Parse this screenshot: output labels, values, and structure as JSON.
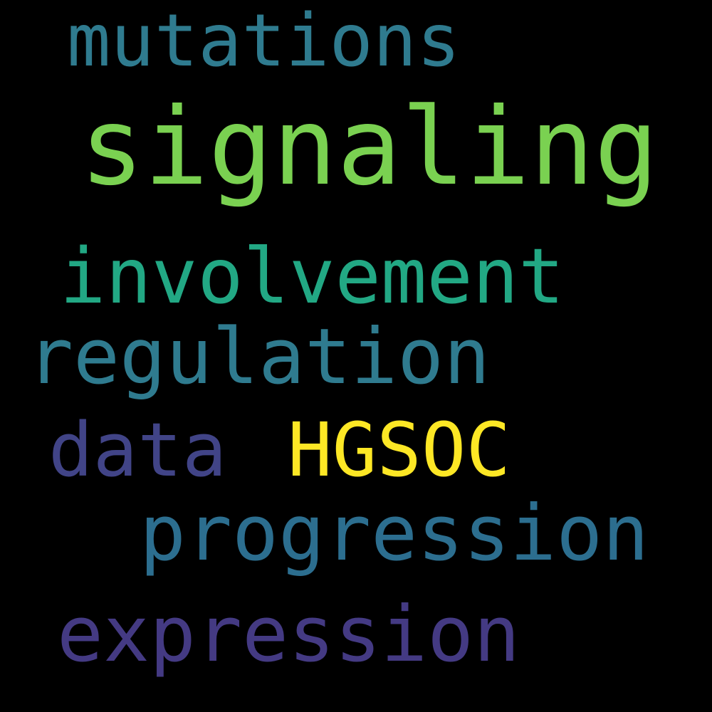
{
  "words": [
    {
      "id": "mutations",
      "text": "mutations",
      "color": "#2f7b8f"
    },
    {
      "id": "signaling",
      "text": "signaling",
      "color": "#7ad151"
    },
    {
      "id": "involvement",
      "text": "involvement",
      "color": "#22a884"
    },
    {
      "id": "regulation",
      "text": "regulation",
      "color": "#2f7b8f"
    },
    {
      "id": "data",
      "text": "data",
      "color": "#414487"
    },
    {
      "id": "hgsoc",
      "text": "HGSOC",
      "color": "#fde725"
    },
    {
      "id": "progression",
      "text": "progression",
      "color": "#2c6e8f"
    },
    {
      "id": "expression",
      "text": "expression",
      "color": "#443a83"
    }
  ]
}
